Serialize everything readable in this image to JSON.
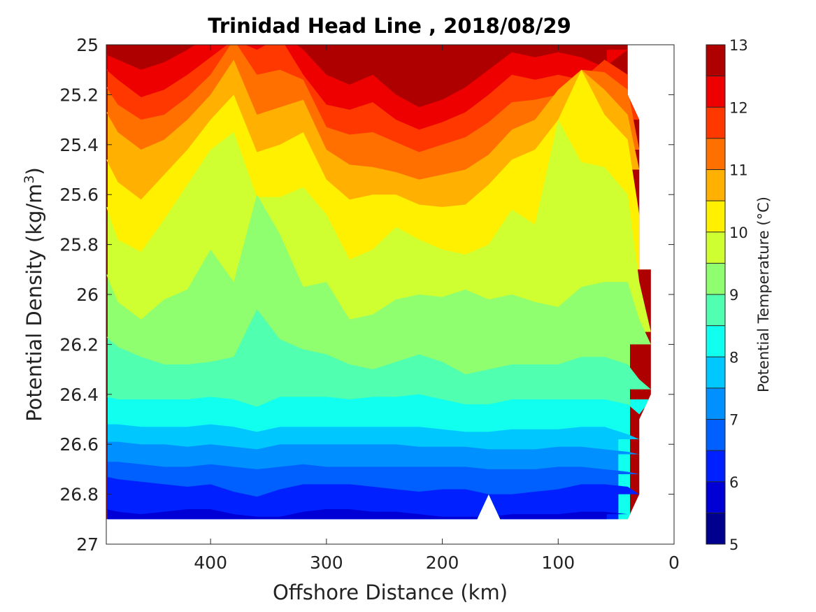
{
  "chart_data": {
    "type": "filled-contour",
    "title": "Trinidad Head Line , 2018/08/29",
    "xlabel": "Offshore Distance (km)",
    "ylabel_main": "Potential Density (kg/m",
    "ylabel_sup": "3",
    "ylabel_close": ")",
    "xlim": [
      490,
      0
    ],
    "x_reversed": true,
    "xticks": [
      400,
      300,
      200,
      100,
      0
    ],
    "ylim": [
      25,
      27
    ],
    "y_reversed": true,
    "yticks": [
      "25",
      "25.2",
      "25.4",
      "25.6",
      "25.8",
      "26",
      "26.2",
      "26.4",
      "26.6",
      "26.8",
      "27"
    ],
    "colorbar": {
      "label": "Potential Temperature (°C)",
      "range": [
        5,
        13
      ],
      "ticks": [
        5,
        6,
        7,
        8,
        9,
        10,
        11,
        12,
        13
      ],
      "levels": [
        5,
        5.5,
        6,
        6.5,
        7,
        7.5,
        8,
        8.5,
        9,
        9.5,
        10,
        10.5,
        11,
        11.5,
        12,
        12.5,
        13
      ],
      "colors": [
        "#00008f",
        "#0000d6",
        "#0020ff",
        "#0060ff",
        "#0090ff",
        "#00c8ff",
        "#10ffef",
        "#50ffaf",
        "#8fff70",
        "#cfff30",
        "#fff000",
        "#ffb000",
        "#ff7000",
        "#ff3800",
        "#ef0000",
        "#af0000"
      ]
    },
    "x": [
      20,
      30,
      40,
      60,
      80,
      100,
      120,
      140,
      160,
      180,
      200,
      220,
      240,
      260,
      280,
      300,
      320,
      340,
      360,
      380,
      400,
      420,
      440,
      460,
      480,
      490
    ],
    "isotherms": [
      {
        "t": 12.5,
        "sigma": [
          null,
          null,
          25.04,
          25.05,
          24.98,
          24.95,
          24.98,
          24.95,
          25.02,
          25.1,
          25.14,
          25.15,
          25.1,
          25.02,
          25.08,
          25.05,
          24.97,
          24.95,
          24.95,
          24.95,
          24.95,
          24.97,
          25.02,
          25.03,
          24.98,
          24.98
        ]
      },
      {
        "t": 12,
        "sigma": [
          null,
          null,
          25.02,
          25.09,
          25.05,
          25.03,
          25.05,
          25.03,
          25.1,
          25.17,
          25.22,
          25.25,
          25.2,
          25.12,
          25.16,
          25.12,
          25.02,
          24.95,
          24.97,
          24.95,
          24.96,
          25.02,
          25.07,
          25.1,
          25.06,
          25.04
        ]
      },
      {
        "t": 11.5,
        "sigma": [
          null,
          25.3,
          25.12,
          25.06,
          25.14,
          25.12,
          25.14,
          25.12,
          25.2,
          25.27,
          25.31,
          25.34,
          25.3,
          25.23,
          25.26,
          25.24,
          25.12,
          24.97,
          25.02,
          24.98,
          25.05,
          25.12,
          25.18,
          25.21,
          25.14,
          25.1
        ]
      },
      {
        "t": 11,
        "sigma": [
          null,
          25.42,
          25.18,
          25.11,
          25.1,
          25.2,
          25.22,
          25.23,
          25.31,
          25.37,
          25.4,
          25.43,
          25.39,
          25.35,
          25.36,
          25.33,
          25.14,
          25.1,
          25.12,
          24.98,
          25.12,
          25.21,
          25.28,
          25.3,
          25.24,
          25.17
        ]
      },
      {
        "t": 10.5,
        "sigma": [
          null,
          25.5,
          25.28,
          25.18,
          25.1,
          25.18,
          25.3,
          25.34,
          25.44,
          25.5,
          25.52,
          25.54,
          25.51,
          25.49,
          25.48,
          25.42,
          25.22,
          25.25,
          25.28,
          25.06,
          25.2,
          25.3,
          25.38,
          25.42,
          25.35,
          25.27
        ]
      },
      {
        "t": 10,
        "sigma": [
          25.9,
          25.68,
          25.38,
          25.28,
          25.1,
          25.3,
          25.42,
          25.46,
          25.56,
          25.64,
          25.65,
          25.64,
          25.6,
          25.6,
          25.62,
          25.54,
          25.35,
          25.4,
          25.43,
          25.2,
          25.3,
          25.42,
          25.52,
          25.62,
          25.55,
          25.46
        ]
      },
      {
        "t": 9.5,
        "sigma": [
          26.15,
          25.95,
          25.6,
          25.49,
          25.47,
          25.3,
          25.72,
          25.66,
          25.8,
          25.84,
          25.82,
          25.78,
          25.73,
          25.82,
          25.86,
          25.68,
          25.57,
          25.61,
          25.61,
          25.35,
          25.42,
          25.56,
          25.7,
          25.83,
          25.78,
          25.65
        ]
      },
      {
        "t": 9,
        "sigma": [
          26.2,
          26.1,
          25.95,
          25.95,
          25.97,
          26.05,
          26.03,
          26.0,
          26.02,
          25.98,
          26.01,
          26.0,
          26.02,
          26.08,
          26.1,
          25.95,
          25.97,
          25.76,
          25.6,
          25.95,
          25.82,
          25.98,
          26.02,
          26.1,
          26.03,
          25.92
        ]
      },
      {
        "t": 8.5,
        "sigma": [
          26.38,
          26.34,
          26.28,
          26.25,
          26.25,
          26.28,
          26.28,
          26.28,
          26.3,
          26.32,
          26.27,
          26.24,
          26.27,
          26.3,
          26.28,
          26.24,
          26.22,
          26.18,
          26.06,
          26.25,
          26.27,
          26.28,
          26.28,
          26.25,
          26.21,
          26.17
        ]
      },
      {
        "t": 8,
        "sigma": [
          26.42,
          26.48,
          26.44,
          26.42,
          26.42,
          26.42,
          26.42,
          26.42,
          26.44,
          26.44,
          26.42,
          26.4,
          26.41,
          26.41,
          26.42,
          26.41,
          26.41,
          26.41,
          26.45,
          26.42,
          26.41,
          26.42,
          26.42,
          26.42,
          26.42,
          26.41
        ]
      },
      {
        "t": 7.5,
        "sigma": [
          null,
          26.58,
          26.56,
          26.53,
          26.53,
          26.54,
          26.54,
          26.54,
          26.55,
          26.55,
          26.54,
          26.53,
          26.53,
          26.53,
          26.53,
          26.53,
          26.53,
          26.53,
          26.55,
          26.53,
          26.52,
          26.53,
          26.53,
          26.53,
          26.52,
          26.52
        ]
      },
      {
        "t": 7,
        "sigma": [
          null,
          26.64,
          26.63,
          26.62,
          26.61,
          26.61,
          26.62,
          26.62,
          26.62,
          26.61,
          26.61,
          26.61,
          26.6,
          26.6,
          26.6,
          26.6,
          26.6,
          26.6,
          26.62,
          26.61,
          26.6,
          26.61,
          26.6,
          26.6,
          26.59,
          26.59
        ]
      },
      {
        "t": 6.5,
        "sigma": [
          null,
          26.72,
          26.71,
          26.7,
          26.69,
          26.69,
          26.7,
          26.7,
          26.7,
          26.69,
          26.69,
          26.69,
          26.69,
          26.69,
          26.69,
          26.69,
          26.68,
          26.69,
          26.7,
          26.69,
          26.68,
          26.69,
          26.69,
          26.68,
          26.67,
          26.67
        ]
      },
      {
        "t": 6,
        "sigma": [
          null,
          26.8,
          26.77,
          26.76,
          26.76,
          26.78,
          26.79,
          26.8,
          26.8,
          26.78,
          26.78,
          26.79,
          26.78,
          26.77,
          26.76,
          26.76,
          26.76,
          26.78,
          26.81,
          26.79,
          26.76,
          26.77,
          26.76,
          26.75,
          26.74,
          26.73
        ]
      },
      {
        "t": 5.5,
        "sigma": [
          null,
          null,
          26.88,
          26.87,
          26.87,
          26.88,
          26.88,
          26.88,
          26.89,
          26.89,
          26.89,
          26.88,
          26.87,
          26.87,
          26.86,
          26.86,
          26.87,
          26.89,
          26.89,
          26.88,
          26.86,
          26.86,
          26.87,
          26.88,
          26.87,
          26.86
        ]
      }
    ],
    "data_extent": {
      "top_edge_km": [
        [
          40,
          25.0
        ],
        [
          40,
          25.2
        ],
        [
          30,
          25.3
        ],
        [
          30,
          25.9
        ],
        [
          20,
          25.9
        ],
        [
          20,
          26.4
        ],
        [
          30,
          26.5
        ],
        [
          30,
          26.8
        ],
        [
          40,
          26.9
        ]
      ],
      "bottom_sigma": 26.9,
      "bottom_notch_km": [
        [
          150,
          26.9
        ],
        [
          160,
          26.8
        ],
        [
          170,
          26.9
        ]
      ]
    }
  }
}
